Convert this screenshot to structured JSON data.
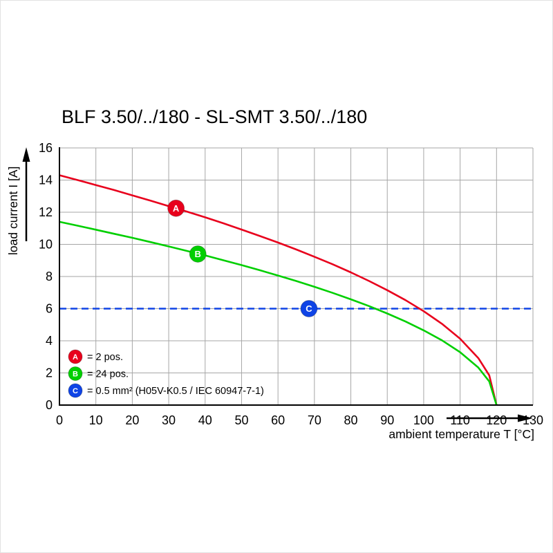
{
  "chart_data": {
    "type": "line",
    "title": "BLF 3.50/../180 - SL-SMT 3.50/../180",
    "xlabel": "ambient temperature T [°C]",
    "ylabel": "load current I [A]",
    "xlim": [
      0,
      130
    ],
    "ylim": [
      0,
      16
    ],
    "x_ticks": [
      0,
      10,
      20,
      30,
      40,
      50,
      60,
      70,
      80,
      90,
      100,
      110,
      120,
      130
    ],
    "y_ticks": [
      0,
      2,
      4,
      6,
      8,
      10,
      12,
      14,
      16
    ],
    "grid": true,
    "grid_color": "#a6a6a6",
    "axis_color": "#000000",
    "series": [
      {
        "name": "A",
        "label": "2 pos.",
        "color": "#e8001c",
        "x": [
          0,
          5,
          10,
          15,
          20,
          25,
          30,
          35,
          40,
          45,
          50,
          55,
          60,
          65,
          70,
          75,
          80,
          85,
          90,
          95,
          100,
          105,
          110,
          115,
          118,
          120
        ],
        "values": [
          14.3,
          14.0,
          13.69,
          13.38,
          13.05,
          12.72,
          12.38,
          12.04,
          11.68,
          11.31,
          10.92,
          10.52,
          10.11,
          9.68,
          9.23,
          8.76,
          8.26,
          7.72,
          7.15,
          6.53,
          5.84,
          5.06,
          4.13,
          2.92,
          1.85,
          0
        ],
        "marker": {
          "x": 32,
          "y": 12.25,
          "letter": "A"
        }
      },
      {
        "name": "B",
        "label": "24 pos.",
        "color": "#00cf00",
        "x": [
          0,
          5,
          10,
          15,
          20,
          25,
          30,
          35,
          40,
          45,
          50,
          55,
          60,
          65,
          70,
          75,
          80,
          85,
          90,
          95,
          100,
          105,
          110,
          115,
          118,
          120
        ],
        "values": [
          11.4,
          11.16,
          10.91,
          10.66,
          10.41,
          10.14,
          9.87,
          9.59,
          9.31,
          9.01,
          8.71,
          8.39,
          8.06,
          7.72,
          7.36,
          6.98,
          6.58,
          6.16,
          5.7,
          5.2,
          4.65,
          4.03,
          3.29,
          2.33,
          1.47,
          0
        ],
        "marker": {
          "x": 38,
          "y": 9.4,
          "letter": "B"
        }
      }
    ],
    "reference_line": {
      "name": "C",
      "label": "0.5 mm² (H05V-K0.5 / IEC 60947-7-1)",
      "y": 6,
      "color": "#0f44e6",
      "style": "dashed",
      "marker": {
        "x": 68.5,
        "y": 6,
        "letter": "C"
      }
    },
    "legend": [
      {
        "letter": "A",
        "color": "#e8001c",
        "text": "= 2 pos."
      },
      {
        "letter": "B",
        "color": "#00cf00",
        "text": "= 24 pos."
      },
      {
        "letter": "C",
        "color": "#0f44e6",
        "text": "= 0.5 mm² (H05V-K0.5 / IEC 60947-7-1)"
      }
    ],
    "legend_position": "lower-left"
  }
}
